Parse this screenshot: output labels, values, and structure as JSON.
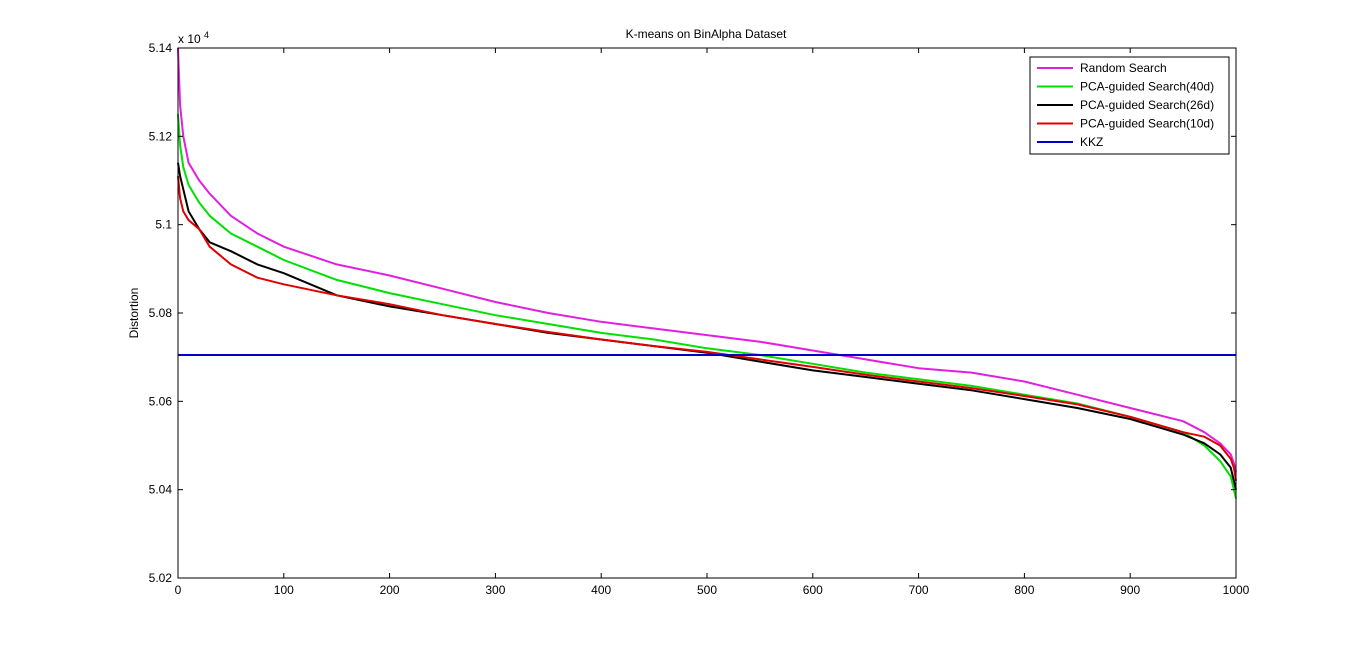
{
  "chart_data": {
    "type": "line",
    "title": "K-means on BinAlpha Dataset",
    "xlabel": "",
    "ylabel": "Distortion",
    "y_multiplier_base": "x 10",
    "y_multiplier_exp": "4",
    "xlim": [
      0,
      1000
    ],
    "ylim": [
      5.02,
      5.14
    ],
    "xticks": [
      0,
      100,
      200,
      300,
      400,
      500,
      600,
      700,
      800,
      900,
      1000
    ],
    "xtick_labels": [
      "0",
      "100",
      "200",
      "300",
      "400",
      "500",
      "600",
      "700",
      "800",
      "900",
      "1000"
    ],
    "yticks": [
      5.02,
      5.04,
      5.06,
      5.08,
      5.1,
      5.12,
      5.14
    ],
    "ytick_labels": [
      "5.02",
      "5.04",
      "5.06",
      "5.08",
      "5.1",
      "5.12",
      "5.14"
    ],
    "grid": false,
    "legend_position": "top-right",
    "series": [
      {
        "name": "Random Search",
        "color": "#e020e0",
        "x": [
          0,
          2,
          5,
          10,
          20,
          30,
          50,
          75,
          100,
          150,
          200,
          250,
          300,
          350,
          400,
          450,
          500,
          550,
          600,
          650,
          700,
          750,
          800,
          850,
          900,
          950,
          970,
          985,
          995,
          998,
          1000
        ],
        "y": [
          5.14,
          5.127,
          5.12,
          5.114,
          5.11,
          5.107,
          5.102,
          5.098,
          5.095,
          5.091,
          5.0885,
          5.0855,
          5.0825,
          5.08,
          5.078,
          5.0765,
          5.075,
          5.0735,
          5.0715,
          5.0695,
          5.0675,
          5.0665,
          5.0645,
          5.0615,
          5.0585,
          5.0555,
          5.053,
          5.0505,
          5.048,
          5.046,
          5.044
        ]
      },
      {
        "name": "PCA-guided Search(40d)",
        "color": "#00e000",
        "x": [
          0,
          2,
          5,
          10,
          20,
          30,
          50,
          75,
          100,
          150,
          200,
          250,
          300,
          350,
          400,
          450,
          500,
          550,
          600,
          650,
          700,
          750,
          800,
          850,
          900,
          950,
          970,
          985,
          995,
          998,
          1000
        ],
        "y": [
          5.125,
          5.118,
          5.113,
          5.109,
          5.105,
          5.102,
          5.098,
          5.095,
          5.092,
          5.0875,
          5.0845,
          5.082,
          5.0795,
          5.0775,
          5.0755,
          5.074,
          5.072,
          5.0705,
          5.0685,
          5.0665,
          5.065,
          5.0635,
          5.0615,
          5.0595,
          5.0565,
          5.053,
          5.05,
          5.0465,
          5.043,
          5.04,
          5.038
        ]
      },
      {
        "name": "PCA-guided Search(26d)",
        "color": "#000000",
        "x": [
          0,
          2,
          5,
          10,
          20,
          30,
          50,
          75,
          100,
          120,
          150,
          200,
          250,
          300,
          350,
          400,
          450,
          500,
          550,
          600,
          650,
          700,
          750,
          800,
          850,
          900,
          950,
          970,
          985,
          995,
          998,
          1000
        ],
        "y": [
          5.114,
          5.111,
          5.108,
          5.103,
          5.099,
          5.096,
          5.094,
          5.091,
          5.089,
          5.087,
          5.084,
          5.0815,
          5.0795,
          5.0775,
          5.0755,
          5.074,
          5.0725,
          5.071,
          5.069,
          5.067,
          5.0655,
          5.064,
          5.0625,
          5.0605,
          5.0585,
          5.056,
          5.0525,
          5.0505,
          5.048,
          5.045,
          5.042,
          5.04
        ]
      },
      {
        "name": "PCA-guided Search(10d)",
        "color": "#e00000",
        "x": [
          0,
          2,
          5,
          10,
          20,
          30,
          50,
          75,
          100,
          150,
          200,
          250,
          300,
          350,
          400,
          450,
          500,
          550,
          600,
          650,
          700,
          750,
          800,
          850,
          900,
          950,
          970,
          985,
          995,
          998,
          1000
        ],
        "y": [
          5.111,
          5.106,
          5.103,
          5.101,
          5.099,
          5.095,
          5.091,
          5.088,
          5.0865,
          5.084,
          5.082,
          5.0795,
          5.0775,
          5.0757,
          5.074,
          5.0725,
          5.0712,
          5.0695,
          5.0678,
          5.066,
          5.0645,
          5.063,
          5.0612,
          5.0593,
          5.0565,
          5.053,
          5.052,
          5.05,
          5.047,
          5.045,
          5.042
        ]
      },
      {
        "name": "KKZ",
        "color": "#0000c8",
        "x": [
          0,
          1000
        ],
        "y": [
          5.0705,
          5.0705
        ]
      }
    ]
  }
}
